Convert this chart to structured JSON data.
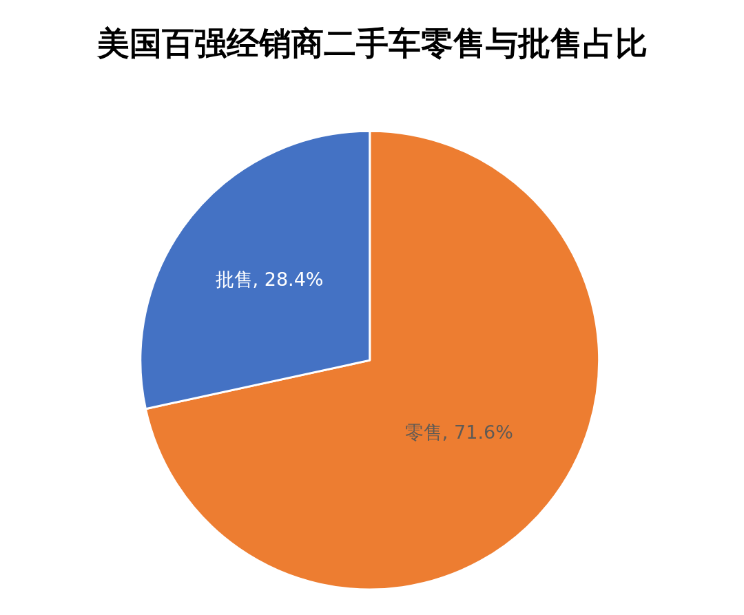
{
  "chart_data": {
    "type": "pie",
    "title": "美国百强经销商二手车零售与批售占比",
    "categories": [
      "零售",
      "批售"
    ],
    "values": [
      71.6,
      28.4
    ],
    "colors": [
      "#ed7d31",
      "#4472c4"
    ],
    "value_labels": [
      "71.6%",
      "28.4%"
    ],
    "legend": false
  }
}
